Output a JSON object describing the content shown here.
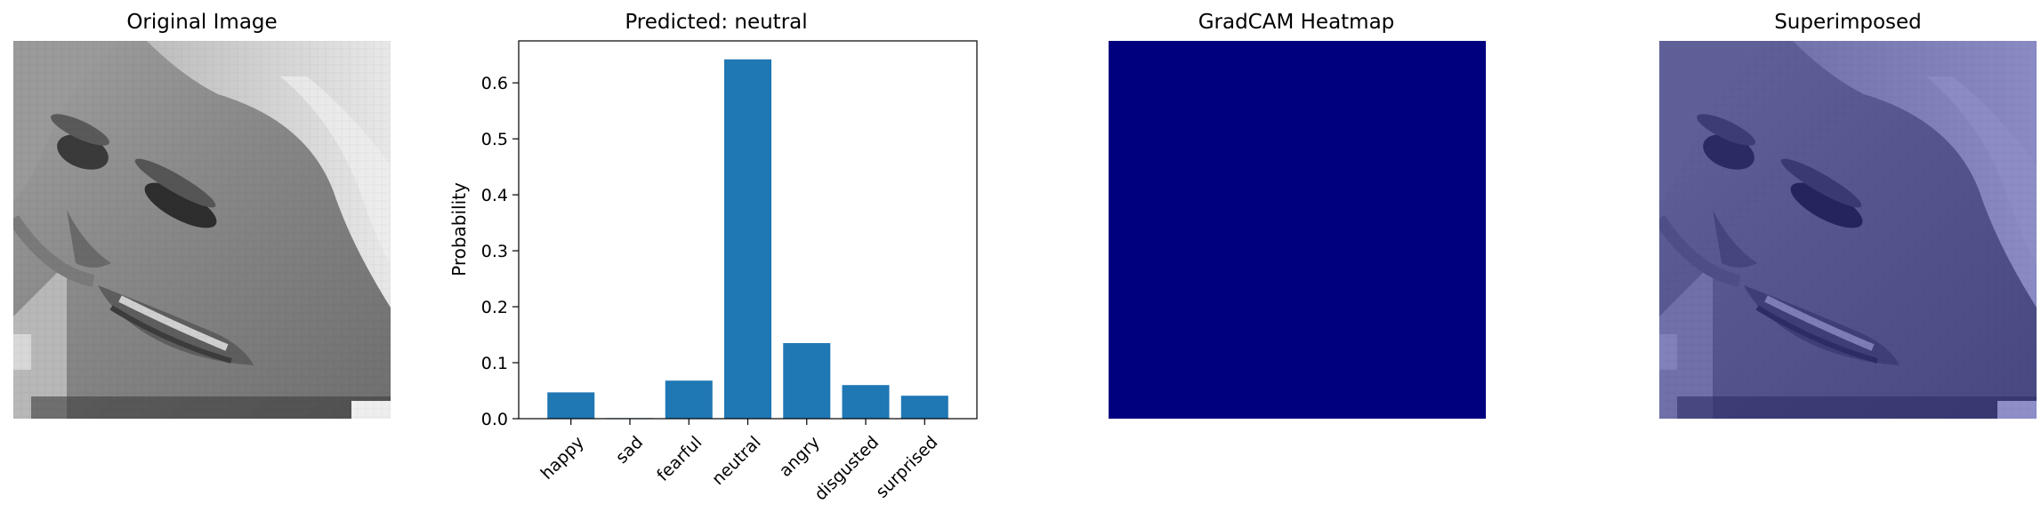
{
  "panels": {
    "original": {
      "title": "Original Image"
    },
    "prediction": {
      "title": "Predicted: neutral"
    },
    "heatmap": {
      "title": "GradCAM Heatmap",
      "color": "#00007f"
    },
    "superimposed": {
      "title": "Superimposed"
    }
  },
  "chart_data": {
    "type": "bar",
    "title": "Predicted: neutral",
    "xlabel": "",
    "ylabel": "Probability",
    "categories": [
      "happy",
      "sad",
      "fearful",
      "neutral",
      "angry",
      "disgusted",
      "surprised"
    ],
    "values": [
      0.047,
      0.001,
      0.068,
      0.642,
      0.135,
      0.06,
      0.041
    ],
    "ylim": [
      0,
      0.675
    ],
    "yticks": [
      0.0,
      0.1,
      0.2,
      0.3,
      0.4,
      0.5,
      0.6
    ],
    "ytick_labels": [
      "0.0",
      "0.1",
      "0.2",
      "0.3",
      "0.4",
      "0.5",
      "0.6"
    ],
    "bar_color": "#1f77b4",
    "grid": false,
    "legend": "none"
  }
}
